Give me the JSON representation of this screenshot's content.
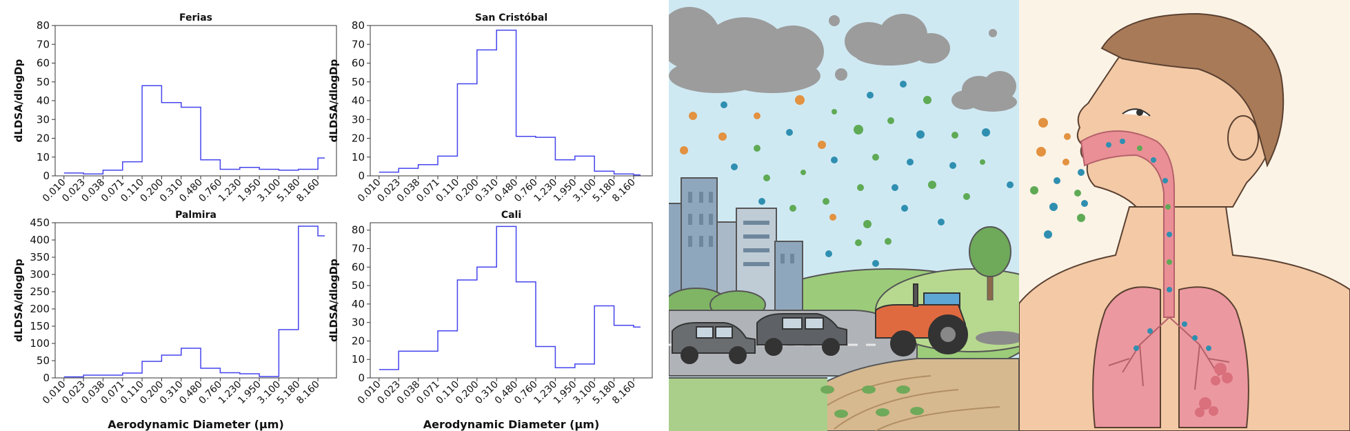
{
  "chart_data": [
    {
      "type": "line",
      "drawstyle": "steps-post",
      "title": "Ferias",
      "ylabel": "dLDSA/dlogDp",
      "xlabel": "",
      "categories": [
        "0.010",
        "0.023",
        "0.038",
        "0.071",
        "0.110",
        "0.200",
        "0.310",
        "0.480",
        "0.760",
        "1.230",
        "1.950",
        "3.100",
        "5.180",
        "8.160"
      ],
      "values": [
        1.5,
        1.0,
        3.0,
        7.5,
        48,
        39,
        36.5,
        8.5,
        3.5,
        4.5,
        3.5,
        3.0,
        3.5,
        9.5
      ],
      "ylim": [
        0,
        80
      ],
      "yticks": [
        0,
        10,
        20,
        30,
        40,
        50,
        60,
        70,
        80
      ],
      "color": "#4444ee",
      "grid": false
    },
    {
      "type": "line",
      "drawstyle": "steps-post",
      "title": "San Cristóbal",
      "ylabel": "dLDSA/dlogDp",
      "xlabel": "",
      "categories": [
        "0.010",
        "0.023",
        "0.038",
        "0.071",
        "0.110",
        "0.200",
        "0.310",
        "0.480",
        "0.760",
        "1.230",
        "1.950",
        "3.100",
        "5.180",
        "8.160"
      ],
      "values": [
        2.0,
        4.0,
        6.0,
        10.5,
        49,
        67,
        77.5,
        21,
        20.5,
        8.5,
        10.5,
        2.5,
        1.0,
        0.5
      ],
      "ylim": [
        0,
        80
      ],
      "yticks": [
        0,
        10,
        20,
        30,
        40,
        50,
        60,
        70,
        80
      ],
      "color": "#4444ee",
      "grid": false
    },
    {
      "type": "line",
      "drawstyle": "steps-post",
      "title": "Palmira",
      "ylabel": "dLDSA/dlogDp",
      "xlabel": "Aerodynamic Diameter (μm)",
      "categories": [
        "0.010",
        "0.023",
        "0.038",
        "0.071",
        "0.110",
        "0.200",
        "0.310",
        "0.480",
        "0.760",
        "1.230",
        "1.950",
        "3.100",
        "5.180",
        "8.160"
      ],
      "values": [
        3,
        8,
        8,
        14,
        48,
        66,
        86,
        28,
        15,
        12,
        4,
        140,
        440,
        412
      ],
      "ylim": [
        0,
        450
      ],
      "yticks": [
        0,
        50,
        100,
        150,
        200,
        250,
        300,
        350,
        400,
        450
      ],
      "color": "#4444ee",
      "grid": false
    },
    {
      "type": "line",
      "drawstyle": "steps-post",
      "title": "Cali",
      "ylabel": "dLDSA/dlogDp",
      "xlabel": "Aerodynamic Diameter (μm)",
      "categories": [
        "0.010",
        "0.023",
        "0.038",
        "0.071",
        "0.110",
        "0.200",
        "0.310",
        "0.480",
        "0.760",
        "1.230",
        "1.950",
        "3.100",
        "5.180",
        "8.160"
      ],
      "values": [
        4.5,
        14.5,
        14.5,
        25.5,
        53,
        60,
        82,
        52,
        17,
        5.5,
        7.5,
        39,
        28.5,
        27.5
      ],
      "ylim": [
        0,
        84
      ],
      "yticks": [
        0,
        10,
        20,
        30,
        40,
        50,
        60,
        70,
        80
      ],
      "color": "#4444ee",
      "grid": false
    }
  ],
  "illustrations": {
    "scene_icon": "city-traffic-agriculture-pollution-icon",
    "body_icon": "human-respiratory-inhalation-icon",
    "colors": {
      "sky": "#cfe9f3",
      "cloud": "#9c9c9c",
      "particle_orange": "#e29240",
      "particle_teal": "#2f8fb0",
      "particle_green": "#5faa55",
      "skin": "#f3c9a6",
      "hair": "#a87a58",
      "lung": "#ec98a0",
      "airway": "#ea8f96"
    }
  }
}
